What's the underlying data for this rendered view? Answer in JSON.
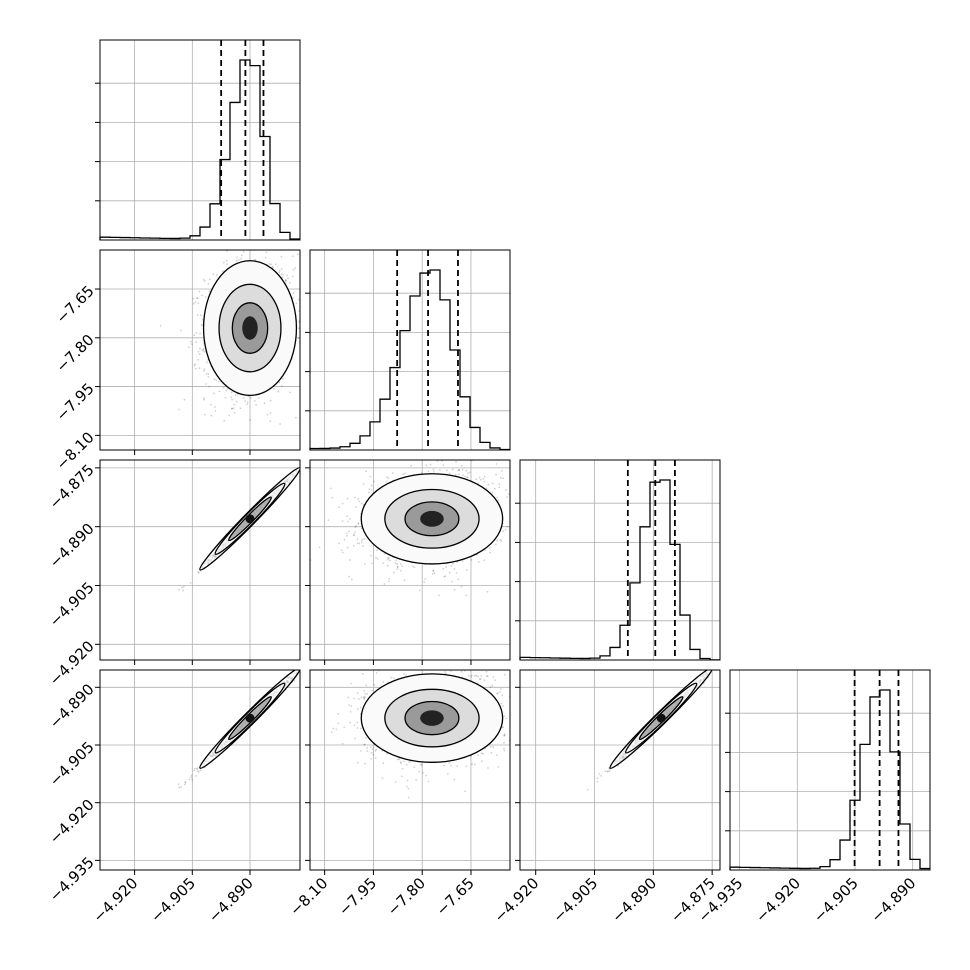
{
  "chart_data": {
    "type": "corner",
    "grid": true,
    "quantiles": [
      0.16,
      0.5,
      0.84
    ],
    "parameters": [
      {
        "id": "p0",
        "range": [
          -4.929,
          -4.877
        ],
        "ticks": [
          -4.92,
          -4.905,
          -4.89
        ],
        "tick_labels": [
          "−4.920",
          "−4.905",
          "−4.890"
        ],
        "quantile_values": [
          -4.8975,
          -4.8912,
          -4.8865
        ],
        "peak": -4.89,
        "sigma": 0.005
      },
      {
        "id": "p1",
        "range": [
          -8.145,
          -7.53
        ],
        "ticks": [
          -8.1,
          -7.95,
          -7.8,
          -7.65
        ],
        "tick_labels": [
          "−8.10",
          "−7.95",
          "−7.80",
          "−7.65"
        ],
        "quantile_values": [
          -7.877,
          -7.782,
          -7.69
        ],
        "peak": -7.77,
        "sigma": 0.09
      },
      {
        "id": "p2",
        "range": [
          -4.924,
          -4.873
        ],
        "ticks": [
          -4.92,
          -4.905,
          -4.89,
          -4.875
        ],
        "tick_labels": [
          "−4.920",
          "−4.905",
          "−4.890",
          "−4.875"
        ],
        "quantile_values": [
          -4.8965,
          -4.8895,
          -4.8845
        ],
        "peak": -4.888,
        "sigma": 0.005
      },
      {
        "id": "p3",
        "range": [
          -4.9375,
          -4.8855
        ],
        "ticks": [
          -4.935,
          -4.92,
          -4.905,
          -4.89
        ],
        "tick_labels": [
          "−4.935",
          "−4.920",
          "−4.905",
          "−4.890"
        ],
        "quantile_values": [
          -4.9051,
          -4.8986,
          -4.8937
        ],
        "peak": -4.898,
        "sigma": 0.005
      }
    ],
    "pairs": [
      {
        "row": 1,
        "col": 0,
        "correlation": 0.1
      },
      {
        "row": 2,
        "col": 0,
        "correlation": 0.995
      },
      {
        "row": 2,
        "col": 1,
        "correlation": 0.1
      },
      {
        "row": 3,
        "col": 0,
        "correlation": 0.995
      },
      {
        "row": 3,
        "col": 1,
        "correlation": 0.1
      },
      {
        "row": 3,
        "col": 2,
        "correlation": 0.995
      }
    ]
  }
}
